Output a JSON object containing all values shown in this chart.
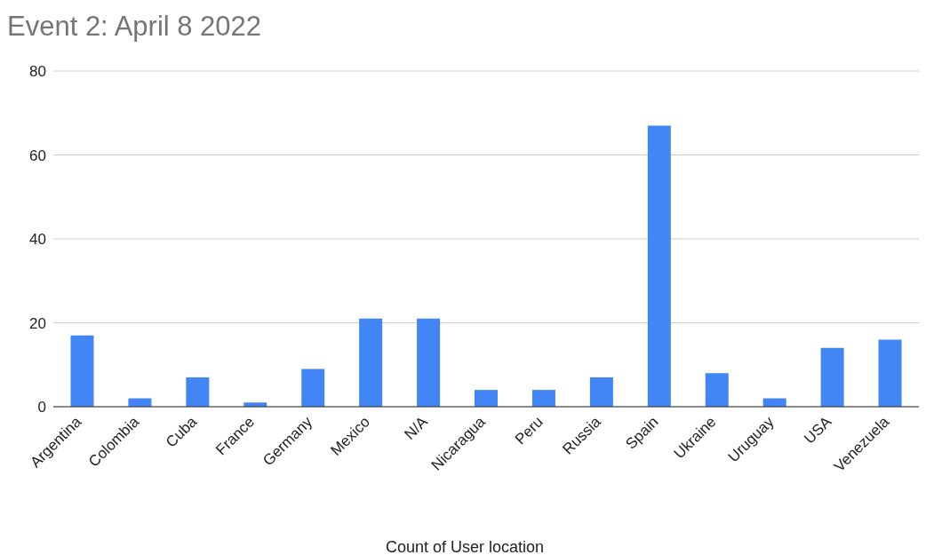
{
  "chart_data": {
    "type": "bar",
    "title": "Event 2: April 8 2022",
    "xlabel": "Count of User location",
    "categories": [
      "Argentina",
      "Colombia",
      "Cuba",
      "France",
      "Germany",
      "Mexico",
      "N/A",
      "Nicaragua",
      "Peru",
      "Russia",
      "Spain",
      "Ukraine",
      "Uruguay",
      "USA",
      "Venezuela"
    ],
    "values": [
      17,
      2,
      7,
      1,
      9,
      21,
      21,
      4,
      4,
      7,
      67,
      8,
      2,
      14,
      16
    ],
    "color": "#4285f4",
    "ylim": [
      0,
      80
    ],
    "yticks": [
      0,
      20,
      40,
      60,
      80
    ],
    "grid": "y"
  }
}
